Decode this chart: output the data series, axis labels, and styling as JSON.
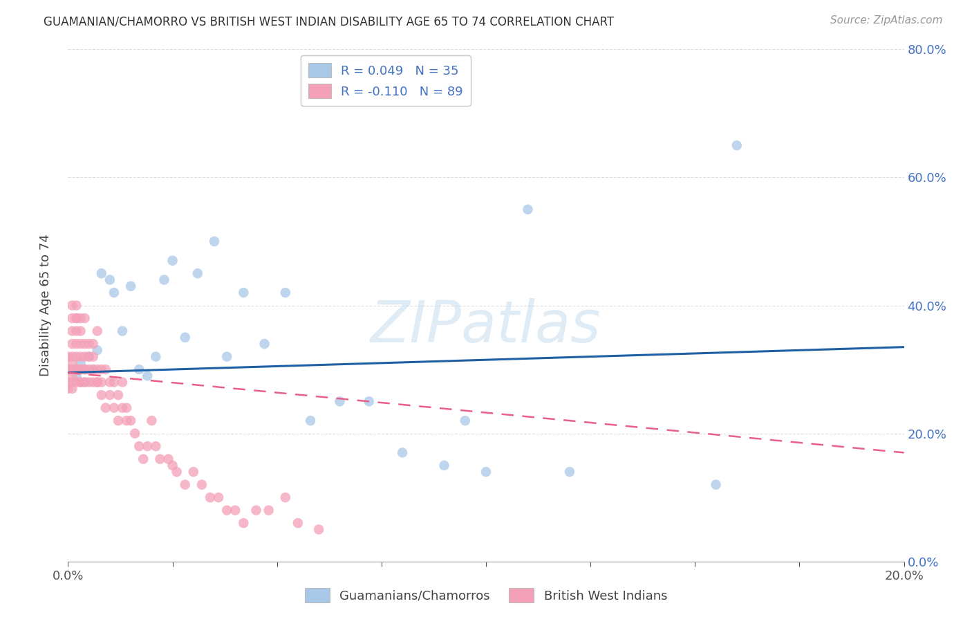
{
  "title": "GUAMANIAN/CHAMORRO VS BRITISH WEST INDIAN DISABILITY AGE 65 TO 74 CORRELATION CHART",
  "source": "Source: ZipAtlas.com",
  "ylabel": "Disability Age 65 to 74",
  "xlim": [
    0,
    0.2
  ],
  "ylim": [
    0,
    0.8
  ],
  "xticks": [
    0.0,
    0.025,
    0.05,
    0.075,
    0.1,
    0.125,
    0.15,
    0.175,
    0.2
  ],
  "xtick_labels": [
    "0.0%",
    "",
    "",
    "",
    "",
    "",
    "",
    "",
    "20.0%"
  ],
  "yticks": [
    0.0,
    0.2,
    0.4,
    0.6,
    0.8
  ],
  "ytick_labels": [
    "0.0%",
    "20.0%",
    "40.0%",
    "60.0%",
    "80.0%"
  ],
  "legend1_label": "R = 0.049   N = 35",
  "legend2_label": "R = -0.110   N = 89",
  "legend_bottom_label1": "Guamanians/Chamorros",
  "legend_bottom_label2": "British West Indians",
  "blue_color": "#a8c8e8",
  "pink_color": "#f4a0b8",
  "blue_line_color": "#1f5fa6",
  "pink_line_color": "#e8608a",
  "watermark_text": "ZIPatlas",
  "blue_x": [
    0.001,
    0.002,
    0.003,
    0.004,
    0.005,
    0.006,
    0.007,
    0.008,
    0.01,
    0.011,
    0.013,
    0.015,
    0.017,
    0.019,
    0.021,
    0.023,
    0.025,
    0.028,
    0.031,
    0.035,
    0.038,
    0.042,
    0.047,
    0.052,
    0.058,
    0.065,
    0.072,
    0.08,
    0.09,
    0.1,
    0.11,
    0.12,
    0.095,
    0.155,
    0.16
  ],
  "blue_y": [
    0.3,
    0.29,
    0.31,
    0.28,
    0.32,
    0.3,
    0.33,
    0.45,
    0.44,
    0.42,
    0.36,
    0.43,
    0.3,
    0.29,
    0.32,
    0.44,
    0.47,
    0.35,
    0.45,
    0.5,
    0.32,
    0.42,
    0.34,
    0.42,
    0.22,
    0.25,
    0.25,
    0.17,
    0.15,
    0.14,
    0.55,
    0.14,
    0.22,
    0.12,
    0.65
  ],
  "pink_x": [
    0.0,
    0.0,
    0.0,
    0.0,
    0.001,
    0.001,
    0.001,
    0.001,
    0.001,
    0.001,
    0.001,
    0.001,
    0.001,
    0.001,
    0.002,
    0.002,
    0.002,
    0.002,
    0.002,
    0.002,
    0.002,
    0.002,
    0.002,
    0.002,
    0.003,
    0.003,
    0.003,
    0.003,
    0.003,
    0.003,
    0.003,
    0.003,
    0.004,
    0.004,
    0.004,
    0.004,
    0.004,
    0.004,
    0.005,
    0.005,
    0.005,
    0.005,
    0.006,
    0.006,
    0.006,
    0.006,
    0.007,
    0.007,
    0.007,
    0.007,
    0.008,
    0.008,
    0.008,
    0.009,
    0.009,
    0.01,
    0.01,
    0.011,
    0.011,
    0.012,
    0.012,
    0.013,
    0.013,
    0.014,
    0.014,
    0.015,
    0.016,
    0.017,
    0.018,
    0.019,
    0.02,
    0.021,
    0.022,
    0.024,
    0.025,
    0.026,
    0.028,
    0.03,
    0.032,
    0.034,
    0.036,
    0.038,
    0.04,
    0.042,
    0.045,
    0.048,
    0.052,
    0.055,
    0.06
  ],
  "pink_y": [
    0.27,
    0.32,
    0.28,
    0.3,
    0.38,
    0.4,
    0.36,
    0.31,
    0.28,
    0.3,
    0.34,
    0.29,
    0.27,
    0.32,
    0.3,
    0.38,
    0.36,
    0.34,
    0.28,
    0.32,
    0.3,
    0.38,
    0.4,
    0.3,
    0.36,
    0.34,
    0.3,
    0.28,
    0.32,
    0.38,
    0.3,
    0.28,
    0.3,
    0.34,
    0.38,
    0.28,
    0.3,
    0.32,
    0.3,
    0.28,
    0.34,
    0.32,
    0.28,
    0.32,
    0.3,
    0.34,
    0.28,
    0.36,
    0.3,
    0.28,
    0.3,
    0.26,
    0.28,
    0.24,
    0.3,
    0.26,
    0.28,
    0.24,
    0.28,
    0.26,
    0.22,
    0.24,
    0.28,
    0.22,
    0.24,
    0.22,
    0.2,
    0.18,
    0.16,
    0.18,
    0.22,
    0.18,
    0.16,
    0.16,
    0.15,
    0.14,
    0.12,
    0.14,
    0.12,
    0.1,
    0.1,
    0.08,
    0.08,
    0.06,
    0.08,
    0.08,
    0.1,
    0.06,
    0.05
  ],
  "blue_trend_x": [
    0.0,
    0.2
  ],
  "blue_trend_y": [
    0.295,
    0.335
  ],
  "pink_trend_x": [
    0.0,
    0.2
  ],
  "pink_trend_y": [
    0.295,
    0.17
  ]
}
